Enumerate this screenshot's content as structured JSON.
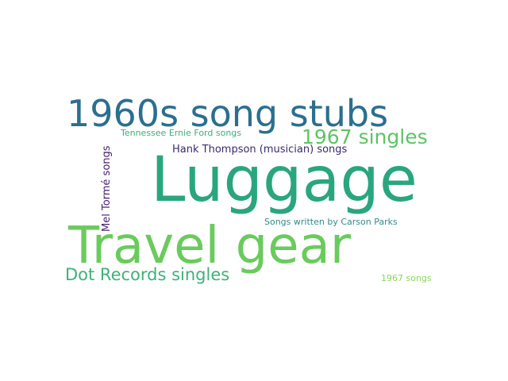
{
  "cloud": {
    "words": [
      {
        "text": "Luggage",
        "color": "#2aa67f"
      },
      {
        "text": "Travel gear",
        "color": "#6acb5d"
      },
      {
        "text": "1960s song stubs",
        "color": "#2b6f8e"
      },
      {
        "text": "1967 singles",
        "color": "#5ec466"
      },
      {
        "text": "Dot Records singles",
        "color": "#3fb17a"
      },
      {
        "text": "Hank Thompson (musician) songs",
        "color": "#3b2a6b"
      },
      {
        "text": "Tennessee Ernie Ford songs",
        "color": "#3cae7a"
      },
      {
        "text": "Mel Tormé songs",
        "color": "#46236f"
      },
      {
        "text": "Songs written by Carson Parks",
        "color": "#2f8c8a"
      },
      {
        "text": "1967 songs",
        "color": "#8ad65a"
      }
    ]
  }
}
